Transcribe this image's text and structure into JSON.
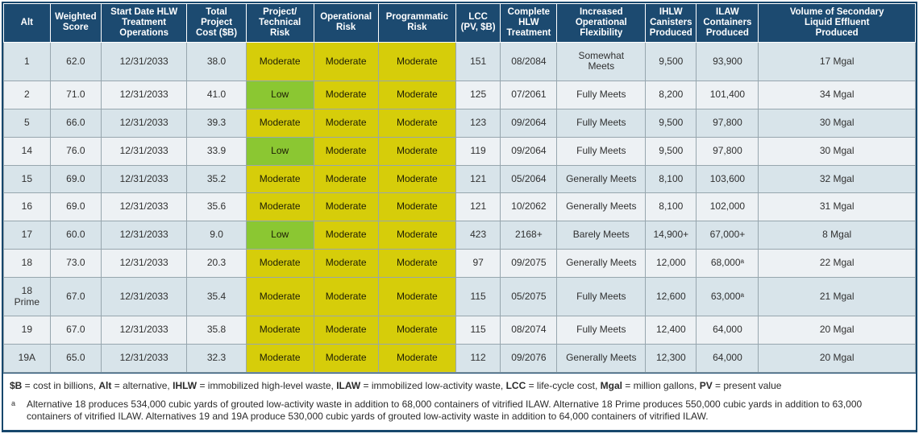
{
  "table": {
    "columns": [
      {
        "id": "alt",
        "label": "Alt"
      },
      {
        "id": "weighted_score",
        "label": "Weighted\nScore"
      },
      {
        "id": "start_date",
        "label": "Start Date HLW\nTreatment\nOperations"
      },
      {
        "id": "total_project_cost",
        "label": "Total\nProject\nCost ($B)"
      },
      {
        "id": "project_risk",
        "label": "Project/\nTechnical\nRisk",
        "type": "risk"
      },
      {
        "id": "operational_risk",
        "label": "Operational\nRisk",
        "type": "risk"
      },
      {
        "id": "programmatic_risk",
        "label": "Programmatic\nRisk",
        "type": "risk"
      },
      {
        "id": "lcc",
        "label": "LCC\n(PV, $B)"
      },
      {
        "id": "complete_hlw",
        "label": "Complete\nHLW\nTreatment"
      },
      {
        "id": "flexibility",
        "label": "Increased\nOperational\nFlexibility"
      },
      {
        "id": "ihlw_canisters",
        "label": "IHLW\nCanisters\nProduced"
      },
      {
        "id": "ilaw_containers",
        "label": "ILAW\nContainers\nProduced"
      },
      {
        "id": "effluent_volume",
        "label": "Volume of Secondary\nLiquid Effluent\nProduced"
      }
    ],
    "rows": [
      [
        "1",
        "62.0",
        "12/31/2033",
        "38.0",
        "Moderate",
        "Moderate",
        "Moderate",
        "151",
        "08/2084",
        "Somewhat\nMeets",
        "9,500",
        "93,900",
        "17 Mgal"
      ],
      [
        "2",
        "71.0",
        "12/31/2033",
        "41.0",
        "Low",
        "Moderate",
        "Moderate",
        "125",
        "07/2061",
        "Fully Meets",
        "8,200",
        "101,400",
        "34 Mgal"
      ],
      [
        "5",
        "66.0",
        "12/31/2033",
        "39.3",
        "Moderate",
        "Moderate",
        "Moderate",
        "123",
        "09/2064",
        "Fully Meets",
        "9,500",
        "97,800",
        "30 Mgal"
      ],
      [
        "14",
        "76.0",
        "12/31/2033",
        "33.9",
        "Low",
        "Moderate",
        "Moderate",
        "119",
        "09/2064",
        "Fully Meets",
        "9,500",
        "97,800",
        "30 Mgal"
      ],
      [
        "15",
        "69.0",
        "12/31/2033",
        "35.2",
        "Moderate",
        "Moderate",
        "Moderate",
        "121",
        "05/2064",
        "Generally Meets",
        "8,100",
        "103,600",
        "32 Mgal"
      ],
      [
        "16",
        "69.0",
        "12/31/2033",
        "35.6",
        "Moderate",
        "Moderate",
        "Moderate",
        "121",
        "10/2062",
        "Generally Meets",
        "8,100",
        "102,000",
        "31 Mgal"
      ],
      [
        "17",
        "60.0",
        "12/31/2033",
        "9.0",
        "Low",
        "Moderate",
        "Moderate",
        "423",
        "2168+",
        "Barely Meets",
        "14,900+",
        "67,000+",
        "8 Mgal"
      ],
      [
        "18",
        "73.0",
        "12/31/2033",
        "20.3",
        "Moderate",
        "Moderate",
        "Moderate",
        "97",
        "09/2075",
        "Generally Meets",
        "12,000",
        "68,000ᵃ",
        "22 Mgal"
      ],
      [
        "18\nPrime",
        "67.0",
        "12/31/2033",
        "35.4",
        "Moderate",
        "Moderate",
        "Moderate",
        "115",
        "05/2075",
        "Fully Meets",
        "12,600",
        "63,000ᵃ",
        "21 Mgal"
      ],
      [
        "19",
        "67.0",
        "12/31/2033",
        "35.8",
        "Moderate",
        "Moderate",
        "Moderate",
        "115",
        "08/2074",
        "Fully Meets",
        "12,400",
        "64,000",
        "20 Mgal"
      ],
      [
        "19A",
        "65.0",
        "12/31/2033",
        "32.3",
        "Moderate",
        "Moderate",
        "Moderate",
        "112",
        "09/2076",
        "Generally Meets",
        "12,300",
        "64,000",
        "20 Mgal"
      ]
    ]
  },
  "risk_colors": {
    "Low": "#8bc732",
    "Moderate": "#d6cd0a"
  },
  "colors": {
    "header_bg": "#1c4a70",
    "row_odd_bg": "#d8e4ea",
    "row_even_bg": "#edf1f4",
    "grid_line": "#97a6ae",
    "outer_border": "#17476c"
  },
  "footnotes": {
    "abbrev_segments": [
      {
        "text": "$B",
        "bold": true
      },
      {
        "text": " = cost in billions, ",
        "bold": false
      },
      {
        "text": "Alt",
        "bold": true
      },
      {
        "text": " = alternative, ",
        "bold": false
      },
      {
        "text": "IHLW",
        "bold": true
      },
      {
        "text": " = immobilized high-level waste, ",
        "bold": false
      },
      {
        "text": "ILAW",
        "bold": true
      },
      {
        "text": " = immobilized low-activity waste, ",
        "bold": false
      },
      {
        "text": "LCC",
        "bold": true
      },
      {
        "text": " = life-cycle cost, ",
        "bold": false
      },
      {
        "text": "Mgal",
        "bold": true
      },
      {
        "text": " = million gallons, ",
        "bold": false
      },
      {
        "text": "PV",
        "bold": true
      },
      {
        "text": " = present value",
        "bold": false
      }
    ],
    "note_marker": "a",
    "note_text": "Alternative 18 produces 534,000 cubic yards of grouted low-activity waste in addition to 68,000 containers of vitrified ILAW. Alternative 18 Prime produces 550,000 cubic yards in addition to 63,000 containers of vitrified ILAW. Alternatives 19 and 19A produce 530,000 cubic yards of grouted low-activity waste in addition to 64,000 containers of vitrified ILAW."
  }
}
